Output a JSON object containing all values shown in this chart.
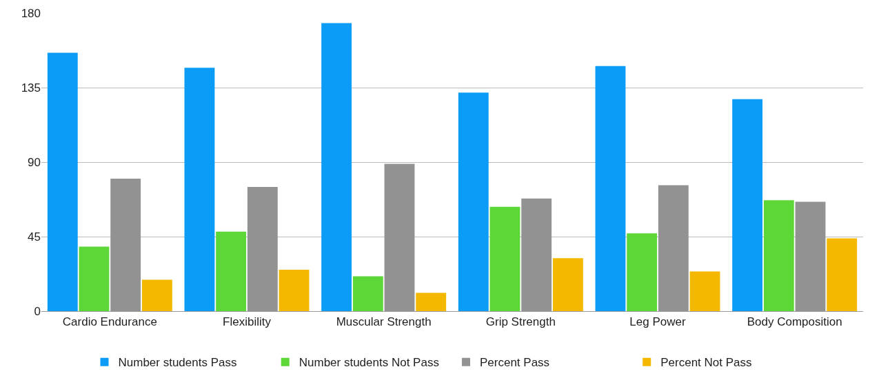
{
  "chart_data": {
    "type": "bar",
    "categories": [
      "Cardio Endurance",
      "Flexibility",
      "Muscular Strength",
      "Grip Strength",
      "Leg Power",
      "Body Composition"
    ],
    "series": [
      {
        "name": "Number students Pass",
        "color": "#0a9cf7",
        "values": [
          156,
          147,
          174,
          132,
          148,
          128
        ]
      },
      {
        "name": "Number students Not Pass",
        "color": "#5dd638",
        "values": [
          39,
          48,
          21,
          63,
          47,
          67
        ]
      },
      {
        "name": "Percent Pass",
        "color": "#929292",
        "values": [
          80,
          75,
          89,
          68,
          76,
          66
        ]
      },
      {
        "name": "Percent Not Pass",
        "color": "#f5b800",
        "values": [
          19,
          25,
          11,
          32,
          24,
          44
        ]
      }
    ],
    "ylim": [
      0,
      180
    ],
    "yticks": [
      0,
      45,
      90,
      135,
      180
    ],
    "grid": "y",
    "legend": "bottom"
  }
}
